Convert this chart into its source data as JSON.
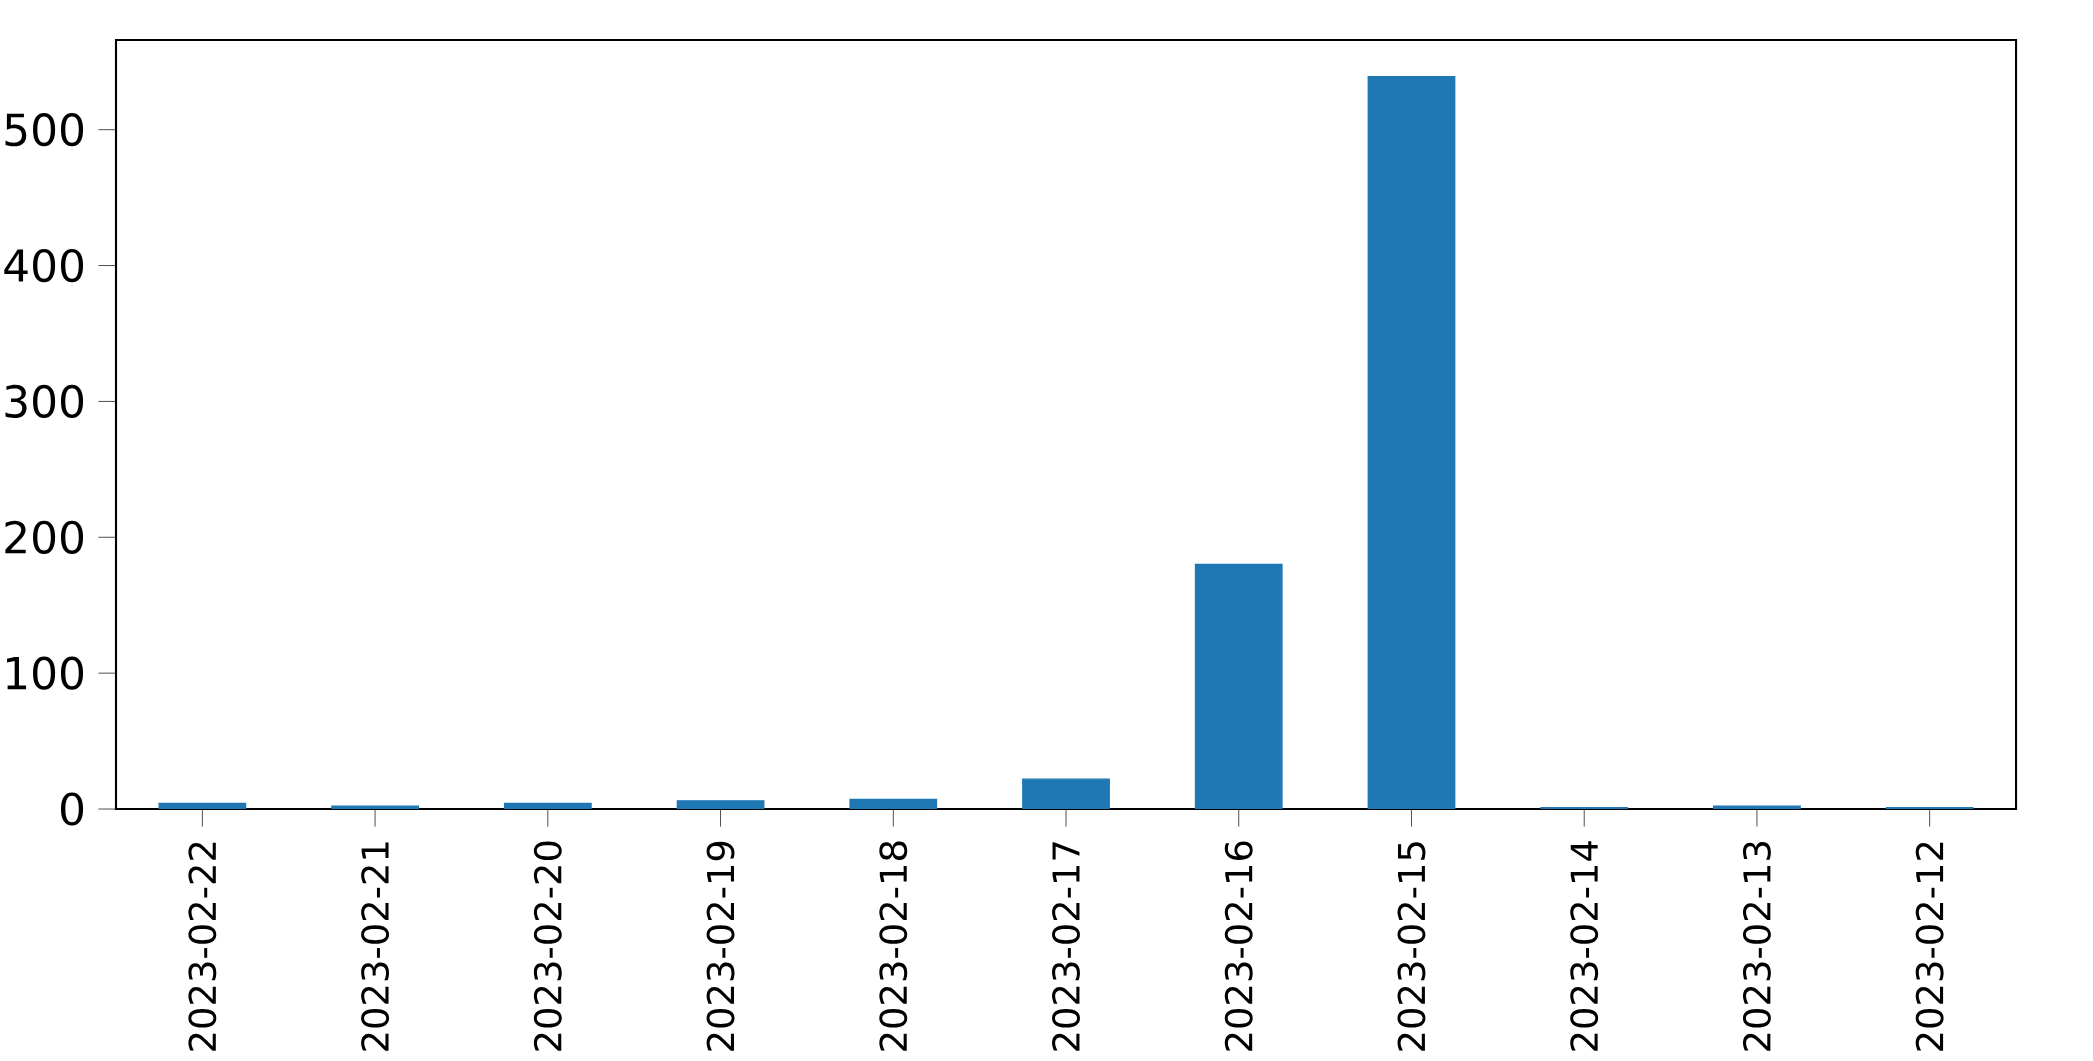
{
  "chart_data": {
    "type": "bar",
    "categories": [
      "2023-02-22",
      "2023-02-21",
      "2023-02-20",
      "2023-02-19",
      "2023-02-18",
      "2023-02-17",
      "2023-02-16",
      "2023-02-15",
      "2023-02-14",
      "2023-02-13",
      "2023-02-12"
    ],
    "values": [
      4,
      2,
      4,
      6,
      7,
      22,
      180,
      539,
      1,
      2,
      1
    ],
    "color": "#1f77b4",
    "ylim": [
      0,
      566
    ],
    "yticks": [
      0,
      100,
      200,
      300,
      400,
      500
    ]
  }
}
